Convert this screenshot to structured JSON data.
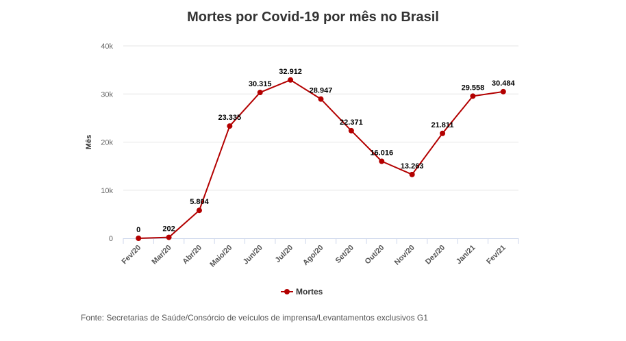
{
  "colors": {
    "series": "#b30000",
    "grid": "#e6e6e6",
    "axis": "#ccd6eb",
    "text": "#333333"
  },
  "legend": {
    "label": "Mortes"
  },
  "source": "Fonte: Secretarias de Saúde/Consórcio de veículos de imprensa/Levantamentos exclusivos G1",
  "chart_data": {
    "type": "line",
    "title": "Mortes por Covid-19 por mês no Brasil",
    "xlabel": "",
    "ylabel": "Mês",
    "categories": [
      "Fev/20",
      "Mar/20",
      "Abr/20",
      "Maio/20",
      "Jun/20",
      "Jul/20",
      "Ago/20",
      "Set/20",
      "Out/20",
      "Nov/20",
      "Dez/20",
      "Jan/21",
      "Fev/21"
    ],
    "series": [
      {
        "name": "Mortes",
        "values": [
          0,
          202,
          5804,
          23335,
          30315,
          32912,
          28947,
          22371,
          16016,
          13263,
          21811,
          29558,
          30484
        ],
        "labels": [
          "0",
          "202",
          "5.804",
          "23.335",
          "30.315",
          "32.912",
          "28.947",
          "22.371",
          "16.016",
          "13.263",
          "21.811",
          "29.558",
          "30.484"
        ]
      }
    ],
    "ylim": [
      0,
      40000
    ],
    "yticks": [
      0,
      10000,
      20000,
      30000,
      40000
    ],
    "ytick_labels": [
      "0",
      "10k",
      "20k",
      "30k",
      "40k"
    ],
    "grid": true,
    "legend_position": "bottom-center"
  }
}
